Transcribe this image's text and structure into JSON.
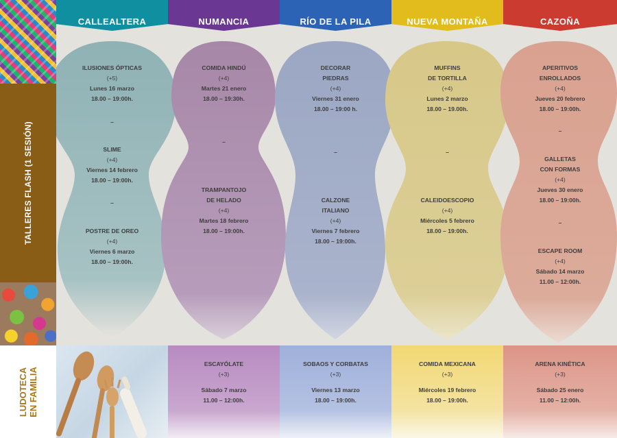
{
  "colors": {
    "calleatera": "#0f8fa0",
    "numancia": "#6a3792",
    "rio": "#2c63b4",
    "montana": "#e2bb1d",
    "cazona": "#cc3b2f",
    "talleres_bar": "#8a5d17",
    "ludoteca_text": "#a6781b"
  },
  "side": {
    "talleres_label": "TALLERES FLASH (1 SESIÓN)",
    "ludoteca_line1": "LUDOTECA",
    "ludoteca_line2": "EN FAMILIA"
  },
  "columns": [
    {
      "header": "CALLEALTERA",
      "talleres": [
        {
          "title": "ILUSIONES ÓPTICAS",
          "age": "(+5)",
          "date": "Lunes 16 marzo",
          "time": "18.00 – 19:00h."
        },
        {
          "title": "SLIME",
          "age": "(+4)",
          "date": "Viernes 14 febrero",
          "time": "18.00 – 19:00h."
        },
        {
          "title": "POSTRE DE OREO",
          "age": "(+4)",
          "date": "Viernes 6 marzo",
          "time": "18.00 – 19:00h."
        }
      ],
      "separator": "–"
    },
    {
      "header": "NUMANCIA",
      "talleres": [
        {
          "title": "COMIDA HINDÚ",
          "age": "(+4)",
          "date": "Martes 21 enero",
          "time": "18.00 – 19:30h."
        },
        {
          "title1": "TRAMPANTOJO",
          "title2": "DE HELADO",
          "age": "(+4)",
          "date": "Martes 18  febrero",
          "time": "18.00 – 19:00h."
        }
      ],
      "separator": "–",
      "familia": {
        "title": "ESCAYÓLATE",
        "age": "(+3)",
        "date": "Sábado 7 marzo",
        "time": "11.00 – 12:00h."
      }
    },
    {
      "header": "RÍO DE LA PILA",
      "talleres": [
        {
          "title1": "DECORAR",
          "title2": "PIEDRAS",
          "age": "(+4)",
          "date": "Viernes 31 enero",
          "time": "18.00 – 19:00 h."
        },
        {
          "title1": "CALZONE",
          "title2": "ITALIANO",
          "age": "(+4)",
          "date": "Viernes 7 febrero",
          "time": "18.00 – 19:00h."
        }
      ],
      "separator": "–",
      "familia": {
        "title": "SOBAOS Y CORBATAS",
        "age": "(+3)",
        "date": "Viernes 13 marzo",
        "time": "18.00 – 19:00h."
      }
    },
    {
      "header": "NUEVA MONTAÑA",
      "talleres": [
        {
          "title1": "MUFFINS",
          "title2": "DE TORTILLA",
          "age": "(+4)",
          "date": "Lunes 2 marzo",
          "time": "18.00 – 19.00h."
        },
        {
          "title": "CALEIDOESCOPIO",
          "age": "(+4)",
          "date": "Miércoles 5 febrero",
          "time": "18.00 – 19:00h."
        }
      ],
      "separator": "–",
      "familia": {
        "title": "COMIDA MEXICANA",
        "age": "(+3)",
        "date": "Miércoles 19 febrero",
        "time": "18.00 – 19:00h."
      }
    },
    {
      "header": "CAZOÑA",
      "talleres": [
        {
          "title1": "APERITIVOS",
          "title2": "ENROLLADOS",
          "age": "(+4)",
          "date": "Jueves 20 febrero",
          "time": "18.00 – 19:00h."
        },
        {
          "title1": "GALLETAS",
          "title2": "CON FORMAS",
          "age": "(+4)",
          "date": "Jueves  30 enero",
          "time": "18.00 – 19:00h."
        },
        {
          "title": "ESCAPE ROOM",
          "age": "(+4)",
          "date": "Sábado 14 marzo",
          "time": "11.00 – 12:00h."
        }
      ],
      "separator": "–",
      "familia": {
        "title": "ARENA KINÉTICA",
        "age": "(+3)",
        "date": "Sábado 25 enero",
        "time": "11.00 – 12:00h."
      }
    }
  ]
}
